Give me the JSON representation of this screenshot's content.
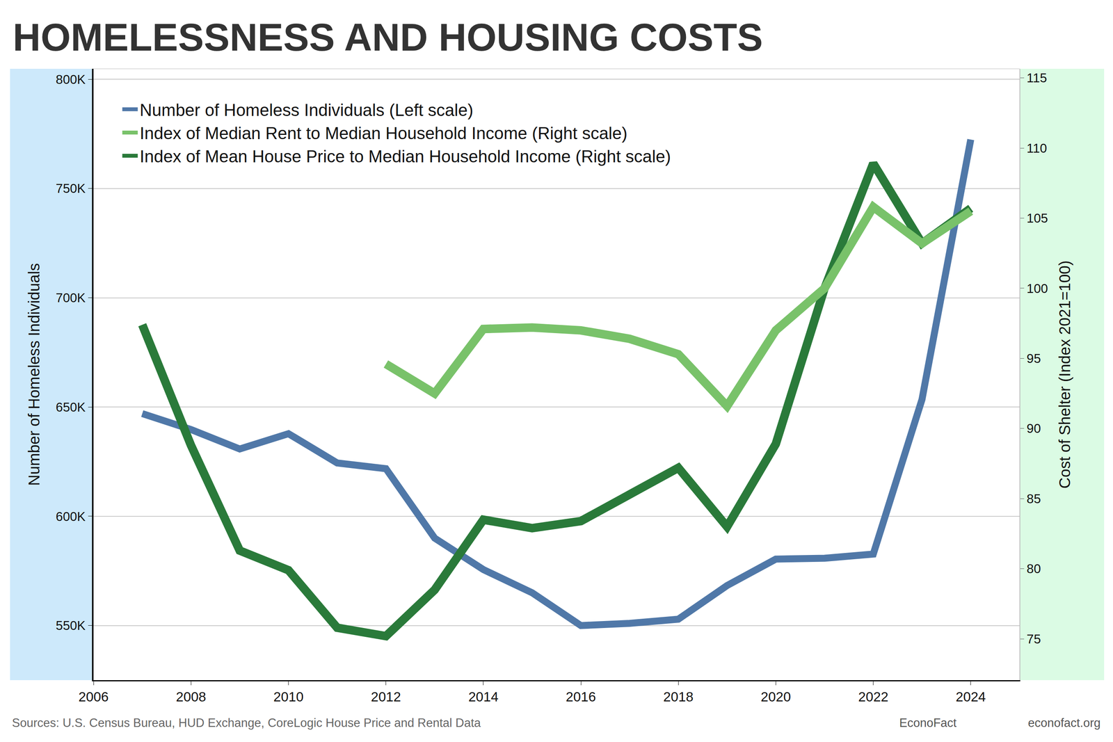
{
  "chart_data": {
    "type": "line",
    "title": "HOMELESSNESS AND HOUSING COSTS",
    "ylabel": "Number of Homeless Individuals",
    "y2label": "Cost of Shelter (Index 2021=100)",
    "annotations": [
      "Sources: U.S. Census Bureau, HUD Exchange, CoreLogic House Price and Rental Data",
      "EconoFact",
      "econofact.org"
    ],
    "x": [
      2007,
      2008,
      2009,
      2010,
      2011,
      2012,
      2013,
      2014,
      2015,
      2016,
      2017,
      2018,
      2019,
      2020,
      2021,
      2022,
      2023,
      2024
    ],
    "series": [
      {
        "name": "Number of Homeless Individuals (Left scale)",
        "color": "#5078a8",
        "axis": "y",
        "values": [
          647000,
          639700,
          630800,
          637800,
          624400,
          621800,
          590000,
          575600,
          565000,
          550000,
          551000,
          552900,
          568300,
          580400,
          580800,
          582700,
          653500,
          772400
        ]
      },
      {
        "name": "Index of Median Rent to Median Household Income (Right scale)",
        "color": "#79c26a",
        "axis": "y2",
        "values": [
          null,
          null,
          null,
          null,
          null,
          94.6,
          92.5,
          97.1,
          97.2,
          97.0,
          96.4,
          95.3,
          91.6,
          97.0,
          100.0,
          105.8,
          103.2,
          105.5
        ]
      },
      {
        "name": "Index of Mean House Price to Median Household Income (Right scale)",
        "color": "#2a7a3a",
        "axis": "y2",
        "values": [
          97.4,
          88.8,
          81.3,
          79.9,
          75.8,
          75.2,
          78.5,
          83.5,
          82.9,
          83.4,
          85.3,
          87.2,
          83.0,
          88.9,
          100.0,
          108.9,
          103.2,
          105.7
        ]
      }
    ],
    "xlim": [
      2006,
      2025
    ],
    "xticks": [
      2006,
      2008,
      2010,
      2012,
      2014,
      2016,
      2018,
      2020,
      2022,
      2024
    ],
    "ylim": [
      525000,
      804800
    ],
    "yticks": [
      {
        "value": 550000,
        "label": "550K"
      },
      {
        "value": 600000,
        "label": "600K"
      },
      {
        "value": 650000,
        "label": "650K"
      },
      {
        "value": 700000,
        "label": "700K"
      },
      {
        "value": 750000,
        "label": "750K"
      },
      {
        "value": 800000,
        "label": "800K"
      }
    ],
    "y2lim": [
      72.06,
      115.65
    ],
    "y2ticks": [
      75,
      80,
      85,
      90,
      95,
      100,
      105,
      110,
      115
    ],
    "grid": true,
    "legend": "upper left"
  }
}
